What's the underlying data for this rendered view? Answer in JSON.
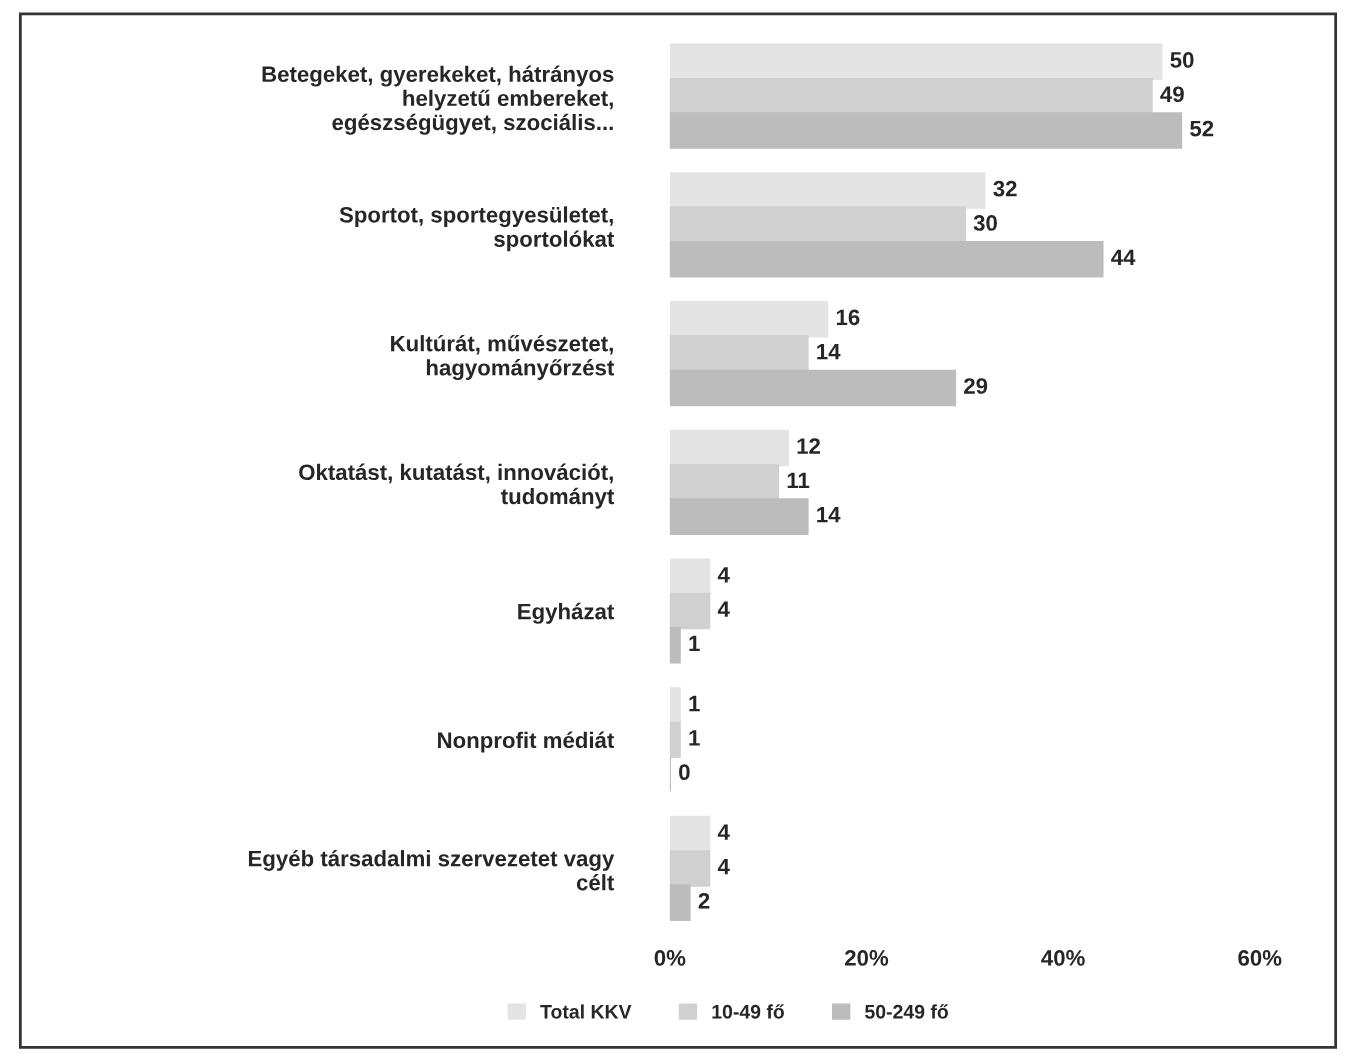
{
  "chart_data": {
    "type": "bar",
    "orientation": "horizontal",
    "categories": [
      "Betegeket, gyerekeket, hátrányos\nhelyzetű embereket,\negészségügyet, szociális...",
      "Sportot, sportegyesületet,\nsportolókat",
      "Kultúrát, művészetet,\nhagyományőrzést",
      "Oktatást, kutatást, innovációt,\ntudományt",
      "Egyházat",
      "Nonprofit médiát",
      "Egyéb társadalmi szervezetet vagy\ncélt"
    ],
    "series": [
      {
        "name": "Total KKV",
        "color": "#e4e4e4",
        "values": [
          50,
          32,
          16,
          12,
          4,
          1,
          4
        ]
      },
      {
        "name": "10-49 fő",
        "color": "#d0d0d0",
        "values": [
          49,
          30,
          14,
          11,
          4,
          1,
          4
        ]
      },
      {
        "name": "50-249 fő",
        "color": "#bcbcbc",
        "values": [
          52,
          44,
          29,
          14,
          1,
          0,
          2
        ]
      }
    ],
    "xlim": [
      0,
      60
    ],
    "xticks": [
      {
        "value": 0,
        "label": "0%"
      },
      {
        "value": 20,
        "label": "20%"
      },
      {
        "value": 40,
        "label": "40%"
      },
      {
        "value": 60,
        "label": "60%"
      }
    ],
    "data_labels": true,
    "grid": false,
    "legend": "bottom"
  }
}
